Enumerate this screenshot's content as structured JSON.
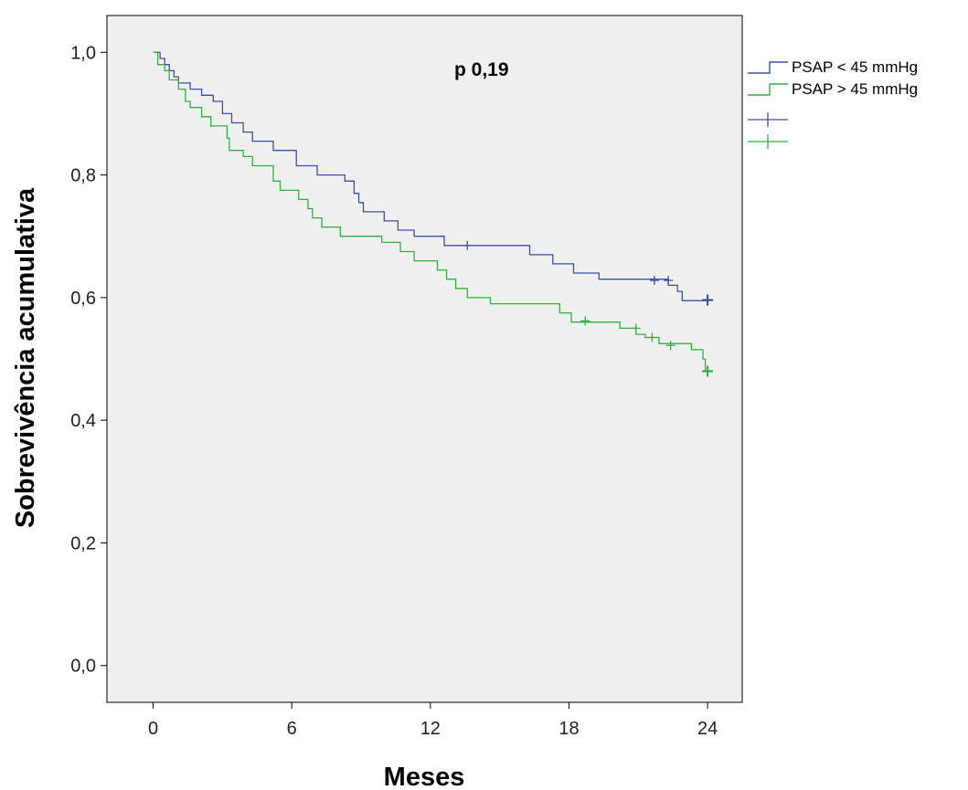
{
  "chart_data": {
    "type": "line",
    "subtype": "kaplan-meier step survival curve",
    "xlabel": "Meses",
    "ylabel": "Sobrevivência acumulativa",
    "annotation": "p 0,19",
    "xlim": [
      -2,
      25.5
    ],
    "ylim": [
      -0.06,
      1.06
    ],
    "x_ticks": [
      0,
      6,
      12,
      18,
      24
    ],
    "x_tick_labels": [
      "0",
      "6",
      "12",
      "18",
      "24"
    ],
    "y_ticks": [
      0.0,
      0.2,
      0.4,
      0.6,
      0.8,
      1.0
    ],
    "y_tick_labels": [
      "0,0",
      "0,2",
      "0,4",
      "0,6",
      "0,8",
      "1,0"
    ],
    "grid": false,
    "plot_background": "#f0f0f0",
    "legend_position": "right, outside top",
    "series": [
      {
        "name": "PSAP < 45 mmHg",
        "censored_label": "",
        "color": "#3d4fa8",
        "steps": [
          [
            0,
            1.0
          ],
          [
            0.3,
            0.99
          ],
          [
            0.5,
            0.98
          ],
          [
            0.7,
            0.97
          ],
          [
            0.9,
            0.96
          ],
          [
            1.1,
            0.95
          ],
          [
            1.6,
            0.94
          ],
          [
            2.1,
            0.93
          ],
          [
            2.6,
            0.92
          ],
          [
            3.0,
            0.9
          ],
          [
            3.4,
            0.885
          ],
          [
            3.9,
            0.87
          ],
          [
            4.3,
            0.855
          ],
          [
            5.2,
            0.84
          ],
          [
            6.2,
            0.815
          ],
          [
            7.1,
            0.8
          ],
          [
            8.3,
            0.79
          ],
          [
            8.7,
            0.77
          ],
          [
            8.9,
            0.755
          ],
          [
            9.1,
            0.74
          ],
          [
            10.0,
            0.725
          ],
          [
            10.6,
            0.71
          ],
          [
            11.3,
            0.7
          ],
          [
            12.6,
            0.685
          ],
          [
            16.3,
            0.67
          ],
          [
            17.3,
            0.655
          ],
          [
            18.2,
            0.64
          ],
          [
            19.3,
            0.63
          ],
          [
            22.3,
            0.62
          ],
          [
            22.7,
            0.61
          ],
          [
            22.9,
            0.595
          ],
          [
            24.0,
            0.595
          ]
        ],
        "censored": [
          [
            13.6,
            0.685
          ],
          [
            21.7,
            0.628
          ],
          [
            22.3,
            0.628
          ],
          [
            24.0,
            0.596
          ]
        ]
      },
      {
        "name": "PSAP > 45 mmHg",
        "censored_label": "",
        "color": "#33b040",
        "steps": [
          [
            0,
            1.0
          ],
          [
            0.2,
            0.98
          ],
          [
            0.5,
            0.97
          ],
          [
            0.7,
            0.955
          ],
          [
            1.1,
            0.94
          ],
          [
            1.4,
            0.92
          ],
          [
            1.6,
            0.91
          ],
          [
            2.1,
            0.895
          ],
          [
            2.5,
            0.88
          ],
          [
            3.2,
            0.86
          ],
          [
            3.3,
            0.84
          ],
          [
            3.9,
            0.83
          ],
          [
            4.3,
            0.815
          ],
          [
            5.2,
            0.79
          ],
          [
            5.5,
            0.775
          ],
          [
            6.3,
            0.76
          ],
          [
            6.7,
            0.745
          ],
          [
            6.9,
            0.73
          ],
          [
            7.3,
            0.715
          ],
          [
            8.1,
            0.7
          ],
          [
            9.9,
            0.69
          ],
          [
            10.7,
            0.675
          ],
          [
            11.3,
            0.66
          ],
          [
            12.3,
            0.645
          ],
          [
            12.7,
            0.63
          ],
          [
            13.1,
            0.615
          ],
          [
            13.6,
            0.6
          ],
          [
            14.6,
            0.59
          ],
          [
            17.6,
            0.575
          ],
          [
            18.1,
            0.56
          ],
          [
            20.2,
            0.55
          ],
          [
            20.9,
            0.54
          ],
          [
            21.3,
            0.535
          ],
          [
            21.9,
            0.525
          ],
          [
            23.3,
            0.515
          ],
          [
            23.8,
            0.5
          ],
          [
            23.9,
            0.48
          ],
          [
            24.0,
            0.48
          ]
        ],
        "censored": [
          [
            18.7,
            0.562
          ],
          [
            20.9,
            0.55
          ],
          [
            21.6,
            0.535
          ],
          [
            22.4,
            0.522
          ],
          [
            24.0,
            0.48
          ]
        ]
      }
    ]
  }
}
